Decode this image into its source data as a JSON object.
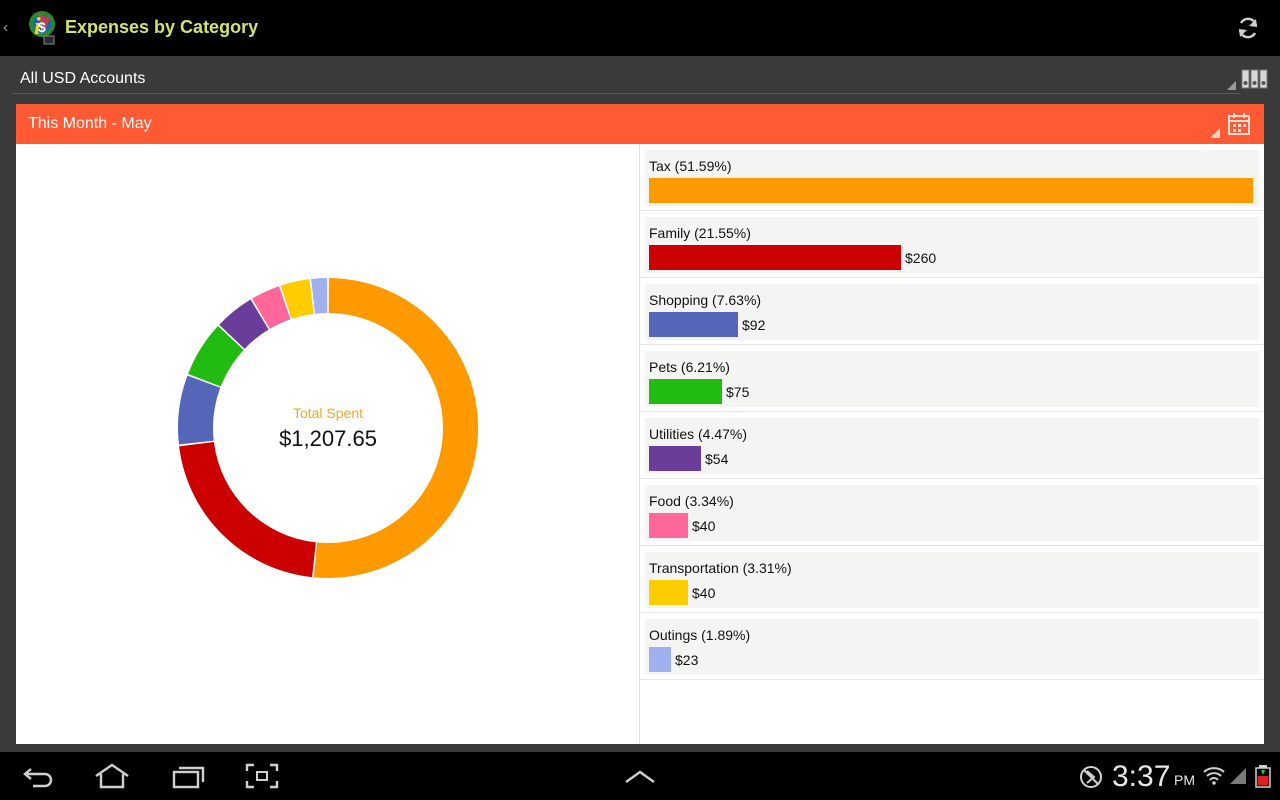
{
  "app": {
    "title": "Expenses by Category"
  },
  "accounts": {
    "selected": "All USD Accounts"
  },
  "period": {
    "label": "This Month - May"
  },
  "summary": {
    "label": "Total Spent",
    "value": "$1,207.65"
  },
  "colors": {
    "accent": "#ff5a33",
    "title": "#d5e36a"
  },
  "icons": {
    "refresh": "refresh-icon",
    "accounts": "accounts-icon",
    "calendar": "calendar-icon",
    "back": "back-icon",
    "home": "home-icon",
    "recents": "recent-apps-icon",
    "screenshot": "screenshot-icon",
    "up": "chevron-up-icon"
  },
  "categories": [
    {
      "name": "Tax (51.59%)",
      "amount": "",
      "percent": 51.59,
      "color": "#ff9900"
    },
    {
      "name": "Family (21.55%)",
      "amount": "$260",
      "percent": 21.55,
      "color": "#cc0000"
    },
    {
      "name": "Shopping (7.63%)",
      "amount": "$92",
      "percent": 7.63,
      "color": "#5566b8"
    },
    {
      "name": "Pets (6.21%)",
      "amount": "$75",
      "percent": 6.21,
      "color": "#22bb11"
    },
    {
      "name": "Utilities (4.47%)",
      "amount": "$54",
      "percent": 4.47,
      "color": "#6a3d9a"
    },
    {
      "name": "Food (3.34%)",
      "amount": "$40",
      "percent": 3.34,
      "color": "#ff6699"
    },
    {
      "name": "Transportation (3.31%)",
      "amount": "$40",
      "percent": 3.31,
      "color": "#ffcc00"
    },
    {
      "name": "Outings (1.89%)",
      "amount": "$23",
      "percent": 1.89,
      "color": "#a0b0ee"
    }
  ],
  "status": {
    "time": "3:37",
    "ampm": "PM"
  }
}
